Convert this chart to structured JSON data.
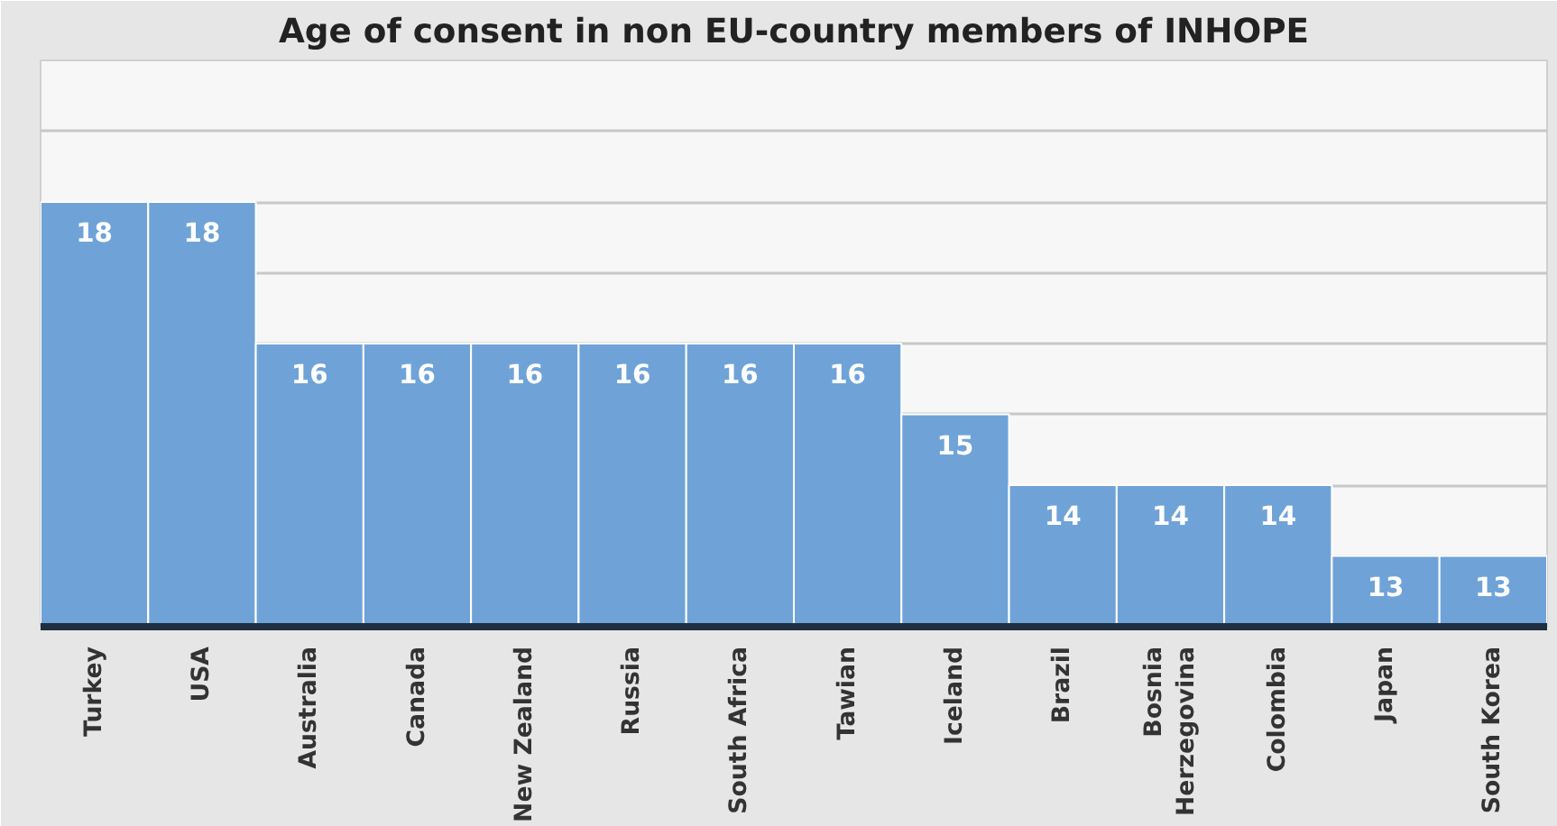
{
  "chart_data": {
    "type": "bar",
    "title": "Age of consent in non EU-country members of INHOPE",
    "categories": [
      "Turkey",
      "USA",
      "Australia",
      "Canada",
      "New Zealand",
      "Russia",
      "South Africa",
      "Tawian",
      "Iceland",
      "Brazil",
      "Bosnia\nHerzegovina",
      "Colombia",
      "Japan",
      "South Korea"
    ],
    "values": [
      18,
      18,
      16,
      16,
      16,
      16,
      16,
      16,
      15,
      14,
      14,
      14,
      13,
      13
    ],
    "color": "#6fa3d8",
    "ylim": [
      12,
      20
    ],
    "yticks": [
      {
        "value": 12,
        "label": null
      },
      {
        "value": 13,
        "label": null
      },
      {
        "value": 14,
        "label": null
      },
      {
        "value": 15,
        "label": null
      },
      {
        "value": 16,
        "label": null
      },
      {
        "value": 17,
        "label": null
      },
      {
        "value": 18,
        "label": null
      },
      {
        "value": 19,
        "label": null
      },
      {
        "value": 20,
        "label": null
      }
    ],
    "grid": "y",
    "tick_labels": "x",
    "data_labels": true
  }
}
